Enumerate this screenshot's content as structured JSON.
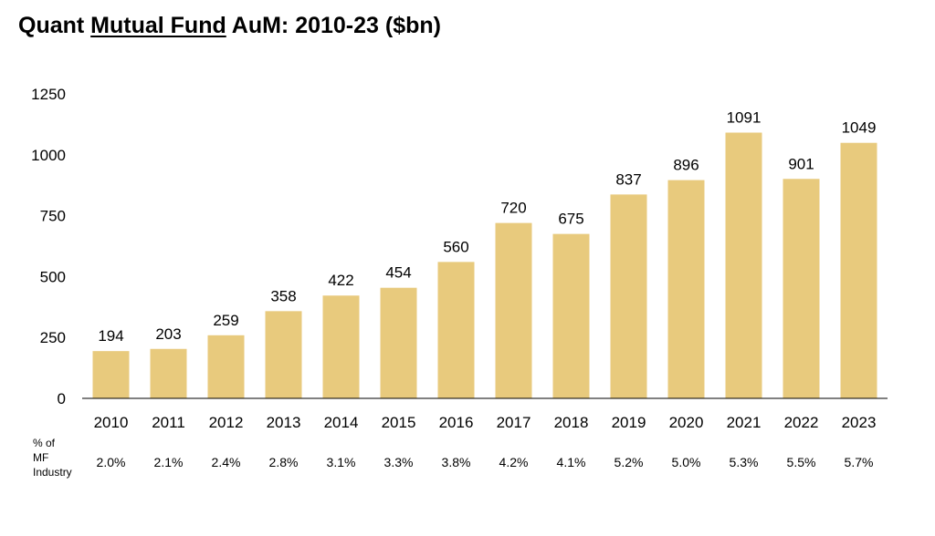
{
  "title": {
    "prefix": "Quant ",
    "underlined": "Mutual Fund",
    "suffix": " AuM: 2010-23 ($bn)"
  },
  "footer_label": [
    "% of",
    "MF",
    "Industry"
  ],
  "colors": {
    "bar": "#E8CA7D",
    "axis": "#000000",
    "text": "#000000"
  },
  "chart_data": {
    "type": "bar",
    "title": "Quant Mutual Fund AuM: 2010-23 ($bn)",
    "categories": [
      "2010",
      "2011",
      "2012",
      "2013",
      "2014",
      "2015",
      "2016",
      "2017",
      "2018",
      "2019",
      "2020",
      "2021",
      "2022",
      "2023"
    ],
    "values": [
      194,
      203,
      259,
      358,
      422,
      454,
      560,
      720,
      675,
      837,
      896,
      1091,
      901,
      1049
    ],
    "share_of_mf_industry": [
      "2.0%",
      "2.1%",
      "2.4%",
      "2.8%",
      "3.1%",
      "3.3%",
      "3.8%",
      "4.2%",
      "4.1%",
      "5.2%",
      "5.0%",
      "5.3%",
      "5.5%",
      "5.7%"
    ],
    "yticks": [
      0,
      250,
      500,
      750,
      1000,
      1250
    ],
    "ylim": [
      0,
      1250
    ],
    "xlabel": "",
    "ylabel": "",
    "grid": false,
    "legend": "none"
  }
}
